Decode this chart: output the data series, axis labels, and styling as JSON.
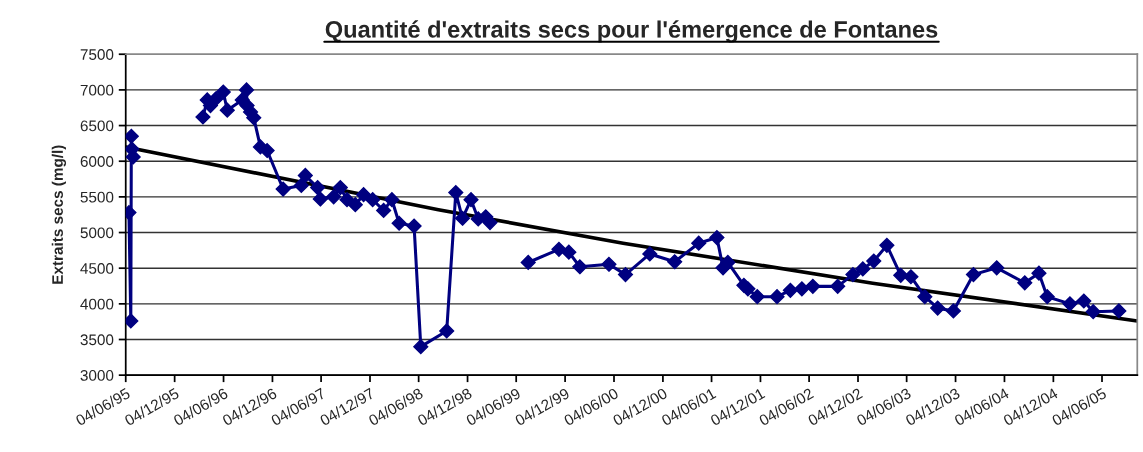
{
  "chart_data": {
    "type": "line",
    "title": "Quantité d'extraits secs pour l'émergence de Fontanes",
    "ylabel": "Extraits secs (mg/l)",
    "xlim": [
      "1995-06-04",
      "2005-10-14"
    ],
    "ylim": [
      3000,
      7500
    ],
    "yticks": [
      3000,
      3500,
      4000,
      4500,
      5000,
      5500,
      6000,
      6500,
      7000,
      7500
    ],
    "xticks": [
      {
        "value": "1995-06-04",
        "label": "04/06/95"
      },
      {
        "value": "1995-12-04",
        "label": "04/12/95"
      },
      {
        "value": "1996-06-04",
        "label": "04/06/96"
      },
      {
        "value": "1996-12-04",
        "label": "04/12/96"
      },
      {
        "value": "1997-06-04",
        "label": "04/06/97"
      },
      {
        "value": "1997-12-04",
        "label": "04/12/97"
      },
      {
        "value": "1998-06-04",
        "label": "04/06/98"
      },
      {
        "value": "1998-12-04",
        "label": "04/12/98"
      },
      {
        "value": "1999-06-04",
        "label": "04/06/99"
      },
      {
        "value": "1999-12-04",
        "label": "04/12/99"
      },
      {
        "value": "2000-06-04",
        "label": "04/06/00"
      },
      {
        "value": "2000-12-04",
        "label": "04/12/00"
      },
      {
        "value": "2001-06-04",
        "label": "04/06/01"
      },
      {
        "value": "2001-12-04",
        "label": "04/12/01"
      },
      {
        "value": "2002-06-04",
        "label": "04/06/02"
      },
      {
        "value": "2002-12-04",
        "label": "04/12/02"
      },
      {
        "value": "2003-06-04",
        "label": "04/06/03"
      },
      {
        "value": "2003-12-04",
        "label": "04/12/03"
      },
      {
        "value": "2004-06-04",
        "label": "04/06/04"
      },
      {
        "value": "2004-12-04",
        "label": "04/12/04"
      },
      {
        "value": "2005-06-04",
        "label": "04/06/05"
      }
    ],
    "grid": "y",
    "marker": "diamond",
    "line_style": "solid",
    "legend": false,
    "series": [
      {
        "color": "#000080",
        "x": [
          "1995-06-16",
          "1995-06-23",
          "1995-06-25",
          "1995-06-27",
          "1995-07-02",
          "1995-11-01",
          "1996-03-19",
          "1996-04-04",
          "1996-04-16",
          "1996-05-05",
          "1996-06-03",
          "1996-06-18",
          "1996-08-13",
          "1996-08-29",
          "1996-08-31",
          "1996-09-13",
          "1996-09-25",
          "1996-10-20",
          "1996-11-14",
          "1997-01-13",
          "1997-03-22",
          "1997-04-06",
          "1997-05-22",
          "1997-06-01",
          "1997-07-21",
          "1997-08-15",
          "1997-09-09",
          "1997-10-10",
          "1997-11-10",
          "1997-12-14",
          "1998-01-24",
          "1998-02-24",
          "1998-03-23",
          "1998-05-18",
          "1998-06-12",
          "1998-09-17",
          "1998-10-21",
          "1998-11-15",
          "1998-12-17",
          "1999-01-13",
          "1999-02-10",
          "1999-02-26",
          "1999-05-01",
          "1999-07-19",
          "1999-11-11",
          "1999-12-18",
          "2000-01-28",
          "2000-05-16",
          "2000-07-17",
          "2000-10-16",
          "2001-01-17",
          "2001-04-17",
          "2001-06-24",
          "2001-07-17",
          "2001-08-04",
          "2001-10-03",
          "2001-10-18",
          "2001-11-22",
          "2002-02-04",
          "2002-03-26",
          "2002-05-08",
          "2002-06-18",
          "2002-09-19",
          "2002-11-15",
          "2002-12-22",
          "2003-02-01",
          "2003-03-22",
          "2003-05-13",
          "2003-06-20",
          "2003-08-11",
          "2003-09-28",
          "2003-11-26",
          "2004-02-09",
          "2004-05-06",
          "2004-08-19",
          "2004-10-11",
          "2004-11-11",
          "2005-02-04",
          "2005-03-28",
          "2005-05-02",
          "2005-08-06"
        ],
        "values": [
          5280,
          3760,
          6350,
          6170,
          6060,
          null,
          6620,
          6860,
          6780,
          6870,
          6970,
          6715,
          6860,
          7000,
          6780,
          6690,
          6610,
          6200,
          6150,
          5610,
          5660,
          5800,
          5630,
          5470,
          5500,
          5630,
          5460,
          5390,
          5530,
          5460,
          5310,
          5460,
          5130,
          5090,
          3400,
          3620,
          5560,
          5200,
          5460,
          5190,
          5220,
          5140,
          null,
          4580,
          4765,
          4725,
          4520,
          4555,
          4410,
          4700,
          4590,
          4850,
          4930,
          4505,
          4580,
          4260,
          4210,
          4100,
          4100,
          4190,
          4210,
          4245,
          4245,
          4410,
          4490,
          4600,
          4820,
          4400,
          4380,
          4100,
          3940,
          3900,
          4410,
          4505,
          4295,
          4430,
          4100,
          4000,
          4040,
          3890,
          3900
        ]
      },
      {
        "type": "line",
        "color": "#000000",
        "marker": "none",
        "x": [
          "1995-06-04",
          "1998-08-17",
          "2000-07-08",
          "2003-01-28",
          "2005-10-14"
        ],
        "values": [
          6200,
          5320,
          4850,
          4290,
          3760
        ]
      }
    ]
  }
}
